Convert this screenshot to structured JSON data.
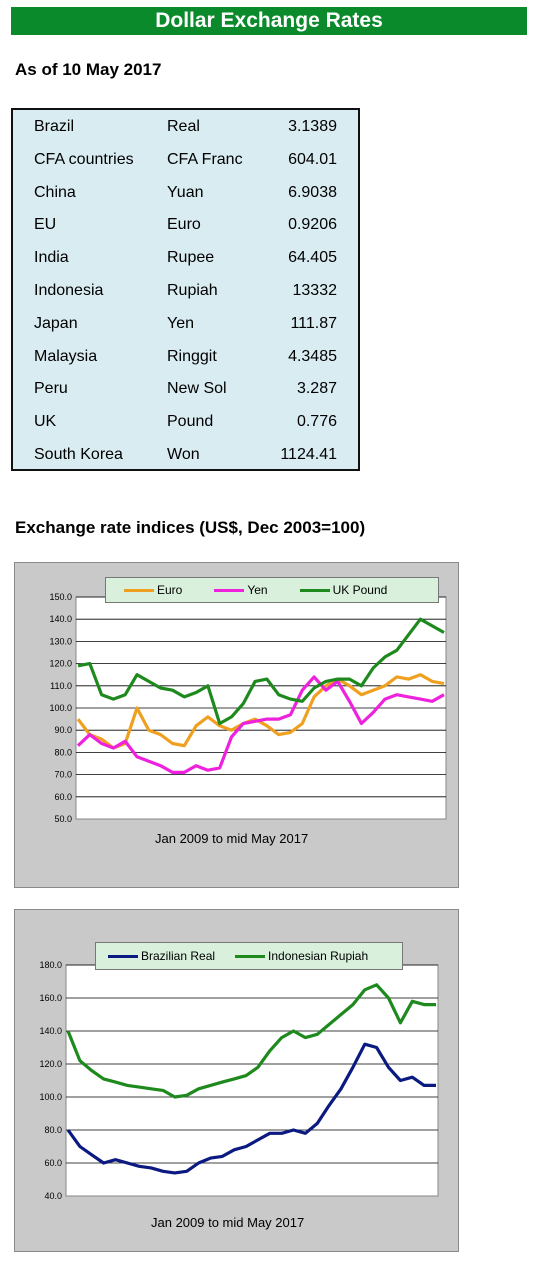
{
  "banner": "Dollar Exchange Rates",
  "as_of": "As of 10 May 2017",
  "rates": [
    {
      "country": "Brazil",
      "currency": "Real",
      "value": "3.1389"
    },
    {
      "country": "CFA countries",
      "currency": "CFA Franc",
      "value": "604.01"
    },
    {
      "country": "China",
      "currency": "Yuan",
      "value": "6.9038"
    },
    {
      "country": "EU",
      "currency": "Euro",
      "value": "0.9206"
    },
    {
      "country": "India",
      "currency": "Rupee",
      "value": "64.405"
    },
    {
      "country": "Indonesia",
      "currency": "Rupiah",
      "value": "13332"
    },
    {
      "country": "Japan",
      "currency": "Yen",
      "value": "111.87"
    },
    {
      "country": "Malaysia",
      "currency": "Ringgit",
      "value": "4.3485"
    },
    {
      "country": "Peru",
      "currency": "New Sol",
      "value": "3.287"
    },
    {
      "country": "UK",
      "currency": "Pound",
      "value": "0.776"
    },
    {
      "country": "South Korea",
      "currency": "Won",
      "value": "1124.41"
    }
  ],
  "indices_title": "Exchange rate indices (US$, Dec 2003=100)",
  "chart_data": [
    {
      "type": "line",
      "xlabel": "Jan 2009  to mid May 2017",
      "ylim": [
        50,
        150
      ],
      "yticks": [
        "150.0",
        "140.0",
        "130.0",
        "120.0",
        "110.0",
        "100.0",
        "90.0",
        "80.0",
        "70.0",
        "60.0",
        "50.0"
      ],
      "grid": true,
      "legend": "top",
      "x_start": "2009-01",
      "x_step_months": 4,
      "series": [
        {
          "name": "Euro",
          "color": "#f0a020",
          "values": [
            95,
            88,
            86,
            82,
            84,
            100,
            90,
            88,
            84,
            83,
            92,
            96,
            92,
            90,
            93,
            95,
            92,
            88,
            89,
            93,
            105,
            110,
            113,
            110,
            106,
            108,
            110,
            114,
            113,
            115,
            112,
            111
          ]
        },
        {
          "name": "Yen",
          "color": "#ee22dd",
          "values": [
            83,
            88,
            84,
            82,
            85,
            78,
            76,
            74,
            71,
            71,
            74,
            72,
            73,
            87,
            93,
            94,
            95,
            95,
            97,
            108,
            114,
            108,
            112,
            103,
            93,
            98,
            104,
            106,
            105,
            104,
            103,
            106
          ]
        },
        {
          "name": "UK Pound",
          "color": "#1e8a1e",
          "values": [
            119,
            120,
            106,
            104,
            106,
            115,
            112,
            109,
            108,
            105,
            107,
            110,
            93,
            96,
            102,
            112,
            113,
            106,
            104,
            103,
            109,
            112,
            113,
            113,
            110,
            118,
            123,
            126,
            133,
            140,
            137,
            134
          ]
        }
      ]
    },
    {
      "type": "line",
      "xlabel": "Jan 2009 to mid May 2017",
      "ylim": [
        40,
        180
      ],
      "yticks": [
        "180.0",
        "160.0",
        "140.0",
        "120.0",
        "100.0",
        "80.0",
        "60.0",
        "40.0"
      ],
      "grid": true,
      "legend": "top",
      "x_start": "2009-01",
      "x_step_months": 4,
      "series": [
        {
          "name": "Brazilian Real",
          "color": "#0a1a80",
          "values": [
            80,
            70,
            65,
            60,
            62,
            60,
            58,
            57,
            55,
            54,
            55,
            60,
            63,
            64,
            68,
            70,
            74,
            78,
            78,
            80,
            78,
            84,
            95,
            105,
            118,
            132,
            130,
            118,
            110,
            112,
            107,
            107
          ]
        },
        {
          "name": "Indonesian Rupiah",
          "color": "#1e8a1e",
          "values": [
            140,
            122,
            116,
            111,
            109,
            107,
            106,
            105,
            104,
            100,
            101,
            105,
            107,
            109,
            111,
            113,
            118,
            128,
            136,
            140,
            136,
            138,
            144,
            150,
            156,
            165,
            168,
            160,
            145,
            158,
            156,
            156
          ]
        }
      ]
    }
  ]
}
